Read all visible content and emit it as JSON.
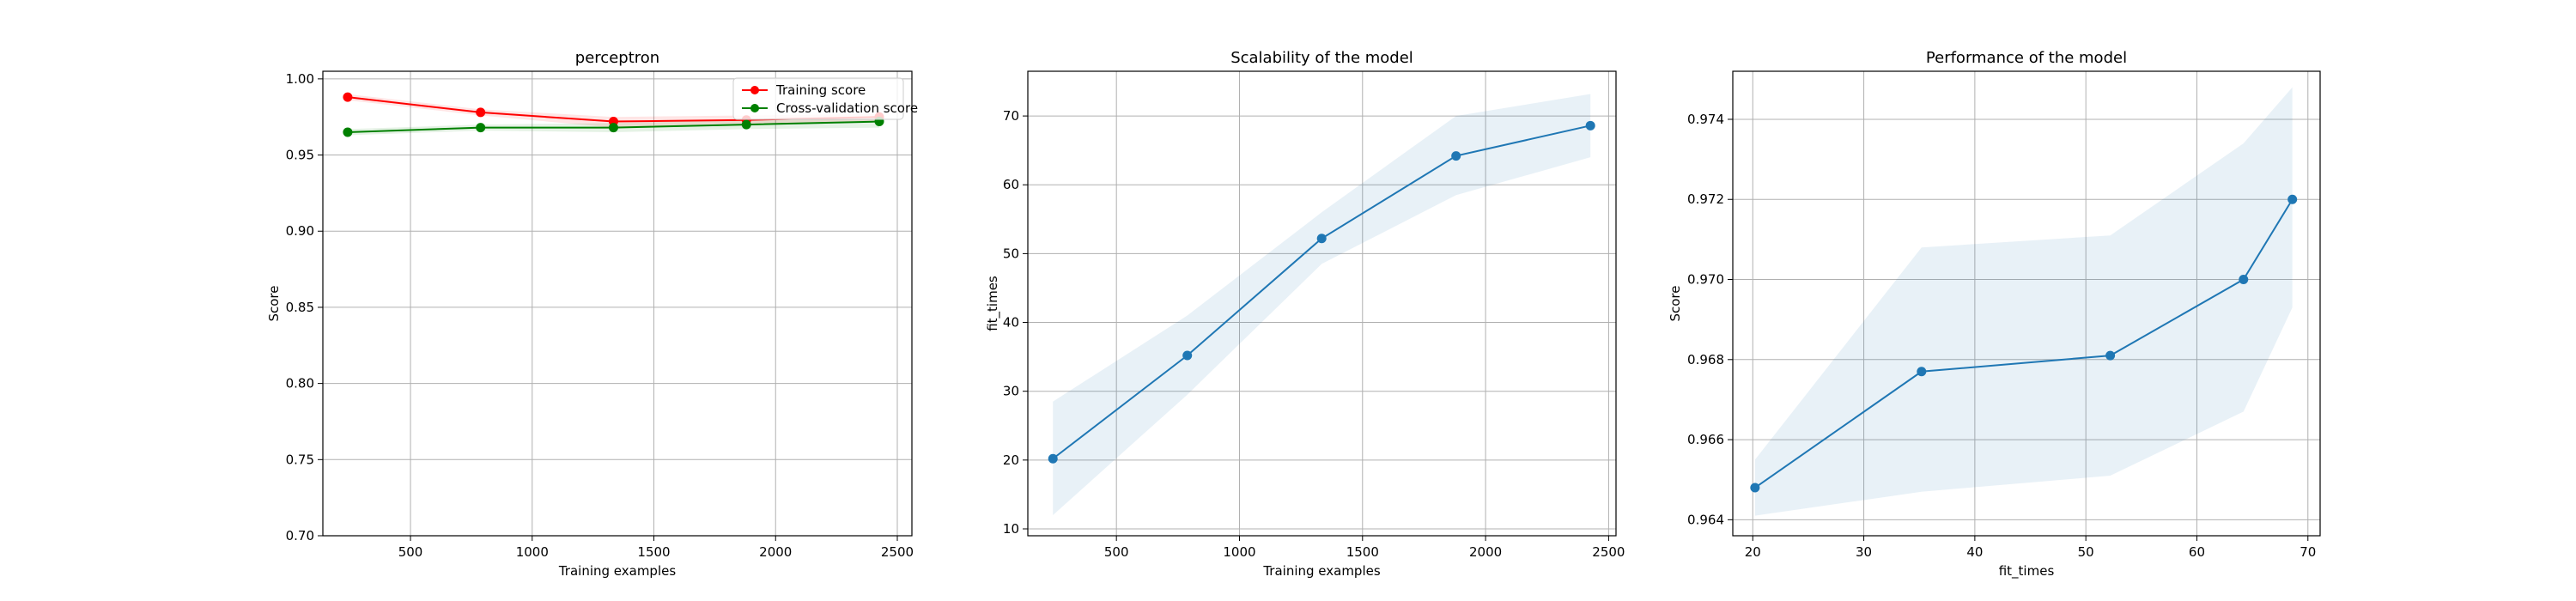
{
  "figure": {
    "background": "#ffffff"
  },
  "chart_data": [
    {
      "id": "learning-curve",
      "type": "line",
      "title": "perceptron",
      "xlabel": "Training examples",
      "ylabel": "Score",
      "xlim": [
        140,
        2560
      ],
      "ylim": [
        0.7,
        1.005
      ],
      "xticks": [
        500,
        1000,
        1500,
        2000,
        2500
      ],
      "yticks": [
        0.7,
        0.75,
        0.8,
        0.85,
        0.9,
        0.95,
        1.0
      ],
      "ytick_format": 2,
      "grid": true,
      "legend": "upper right",
      "x": [
        242,
        788,
        1334,
        1880,
        2426
      ],
      "series": [
        {
          "name": "Training score",
          "color": "#ff0000",
          "values": [
            0.988,
            0.978,
            0.972,
            0.973,
            0.975
          ],
          "band_lower": [
            0.986,
            0.976,
            0.968,
            0.97,
            0.972
          ],
          "band_upper": [
            0.99,
            0.98,
            0.975,
            0.976,
            0.977
          ]
        },
        {
          "name": "Cross-validation score",
          "color": "#008000",
          "values": [
            0.965,
            0.968,
            0.968,
            0.97,
            0.972
          ],
          "band_lower": [
            0.963,
            0.966,
            0.965,
            0.967,
            0.968
          ],
          "band_upper": [
            0.967,
            0.97,
            0.971,
            0.973,
            0.975
          ]
        }
      ]
    },
    {
      "id": "scalability",
      "type": "line",
      "title": "Scalability of the model",
      "xlabel": "Training examples",
      "ylabel": "fit_times",
      "xlim": [
        140,
        2530
      ],
      "ylim": [
        9,
        76.5
      ],
      "xticks": [
        500,
        1000,
        1500,
        2000,
        2500
      ],
      "yticks": [
        10,
        20,
        30,
        40,
        50,
        60,
        70
      ],
      "ytick_format": 0,
      "grid": true,
      "x": [
        242,
        788,
        1334,
        1880,
        2426
      ],
      "series": [
        {
          "color": "#1f77b4",
          "values": [
            20.2,
            35.2,
            52.2,
            64.2,
            68.6
          ],
          "band_lower": [
            12.0,
            29.5,
            48.5,
            58.5,
            64.0
          ],
          "band_upper": [
            28.5,
            41.0,
            56.0,
            70.0,
            73.2
          ]
        }
      ]
    },
    {
      "id": "performance",
      "type": "line",
      "title": "Performance of the model",
      "xlabel": "fit_times",
      "ylabel": "Score",
      "xlim": [
        18.2,
        71.1
      ],
      "ylim": [
        0.9636,
        0.9752
      ],
      "xticks": [
        20,
        30,
        40,
        50,
        60,
        70
      ],
      "yticks": [
        0.964,
        0.966,
        0.968,
        0.97,
        0.972,
        0.974
      ],
      "ytick_format": 3,
      "grid": true,
      "x": [
        20.2,
        35.2,
        52.2,
        64.2,
        68.6
      ],
      "series": [
        {
          "color": "#1f77b4",
          "values": [
            0.9648,
            0.9677,
            0.9681,
            0.97,
            0.972
          ],
          "band_lower": [
            0.9641,
            0.9647,
            0.9651,
            0.9667,
            0.9693
          ],
          "band_upper": [
            0.9655,
            0.9708,
            0.9711,
            0.9734,
            0.9748
          ]
        }
      ]
    }
  ]
}
